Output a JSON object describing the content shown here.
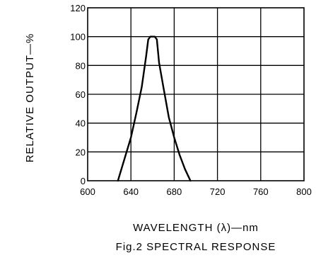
{
  "chart_data": {
    "type": "line",
    "title": "",
    "caption": "Fig.2 SPECTRAL RESPONSE",
    "xlabel": "WAVELENGTH (λ)—nm",
    "ylabel": "RELATIVE OUTPUT—%",
    "xlim": [
      600,
      800
    ],
    "ylim": [
      0,
      120
    ],
    "xticks": [
      600,
      640,
      680,
      720,
      760,
      800
    ],
    "yticks": [
      0,
      20,
      40,
      60,
      80,
      100,
      120
    ],
    "grid": true,
    "series": [
      {
        "x": [
          628,
          634,
          640,
          645,
          650,
          654,
          656,
          658,
          660,
          662,
          664,
          666,
          670,
          675,
          680,
          685,
          690,
          695
        ],
        "values": [
          0,
          15,
          30,
          47,
          65,
          86,
          98,
          100,
          100,
          100,
          98,
          82,
          65,
          44,
          30,
          18,
          8,
          0
        ]
      }
    ]
  }
}
